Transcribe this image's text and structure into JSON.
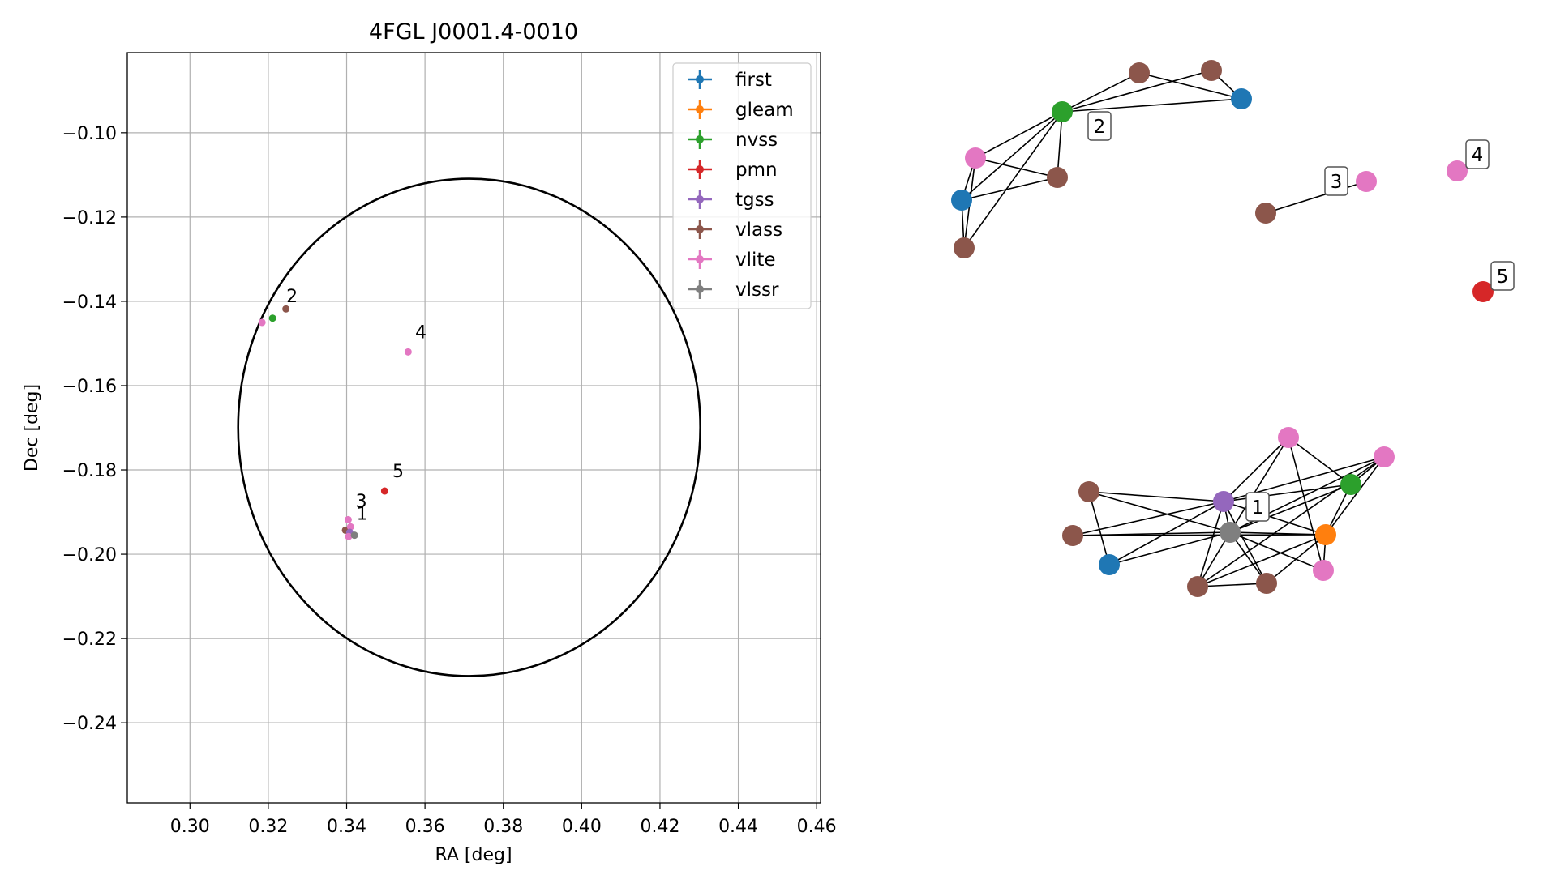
{
  "colors": {
    "first": "#1f77b4",
    "gleam": "#ff7f0e",
    "nvss": "#2ca02c",
    "pmn": "#d62728",
    "tgss": "#9467bd",
    "vlass": "#8c564b",
    "vlite": "#e377c2",
    "vlssr": "#7f7f7f"
  },
  "chart_data": [
    {
      "type": "scatter",
      "title": "4FGL J0001.4-0010",
      "xlabel": "RA [deg]",
      "ylabel": "Dec [deg]",
      "xlim": [
        0.284,
        0.461
      ],
      "ylim": [
        -0.259,
        -0.081
      ],
      "xticks": [
        0.3,
        0.32,
        0.34,
        0.36,
        0.38,
        0.4,
        0.42,
        0.44,
        0.46
      ],
      "xtick_labels": [
        "0.30",
        "0.32",
        "0.34",
        "0.36",
        "0.38",
        "0.40",
        "0.42",
        "0.44",
        "0.46"
      ],
      "yticks": [
        -0.1,
        -0.12,
        -0.14,
        -0.16,
        -0.18,
        -0.2,
        -0.22,
        -0.24
      ],
      "ytick_labels": [
        "−0.10",
        "−0.12",
        "−0.14",
        "−0.16",
        "−0.18",
        "−0.20",
        "−0.22",
        "−0.24"
      ],
      "grid": true,
      "legend_position": "top-right",
      "legend": [
        "first",
        "gleam",
        "nvss",
        "pmn",
        "tgss",
        "vlass",
        "vlite",
        "vlssr"
      ],
      "circle": {
        "center_ra": 0.3713,
        "center_dec": -0.1699,
        "radius": 0.059
      },
      "points": [
        {
          "survey": "vlite",
          "ra": 0.3184,
          "dec": -0.145
        },
        {
          "survey": "nvss",
          "ra": 0.3211,
          "dec": -0.144
        },
        {
          "survey": "vlass",
          "ra": 0.3245,
          "dec": -0.1418
        },
        {
          "survey": "vlite",
          "ra": 0.3557,
          "dec": -0.152
        },
        {
          "survey": "pmn",
          "ra": 0.3497,
          "dec": -0.185
        },
        {
          "survey": "vlite",
          "ra": 0.3404,
          "dec": -0.1918
        },
        {
          "survey": "vlass",
          "ra": 0.3397,
          "dec": -0.1943
        },
        {
          "survey": "vlite",
          "ra": 0.341,
          "dec": -0.1935
        },
        {
          "survey": "tgss",
          "ra": 0.3408,
          "dec": -0.1948
        },
        {
          "survey": "vlite",
          "ra": 0.3405,
          "dec": -0.1958
        },
        {
          "survey": "vlssr",
          "ra": 0.342,
          "dec": -0.1955
        }
      ],
      "annotations": [
        {
          "text": "2",
          "ra": 0.3246,
          "dec": -0.1402
        },
        {
          "text": "4",
          "ra": 0.3575,
          "dec": -0.1488
        },
        {
          "text": "5",
          "ra": 0.3517,
          "dec": -0.1817
        },
        {
          "text": "3",
          "ra": 0.3423,
          "dec": -0.1888
        },
        {
          "text": "1",
          "ra": 0.3425,
          "dec": -0.1918
        }
      ]
    },
    {
      "type": "network",
      "nodes": [
        {
          "id": "a1",
          "survey": "vlass",
          "gx": 1405,
          "gy": 90
        },
        {
          "id": "a2",
          "survey": "vlass",
          "gx": 1494,
          "gy": 87
        },
        {
          "id": "a3",
          "survey": "first",
          "gx": 1531,
          "gy": 122
        },
        {
          "id": "a4",
          "survey": "nvss",
          "gx": 1310,
          "gy": 138
        },
        {
          "id": "a5",
          "survey": "vlite",
          "gx": 1203,
          "gy": 195
        },
        {
          "id": "a6",
          "survey": "vlass",
          "gx": 1304,
          "gy": 219
        },
        {
          "id": "a7",
          "survey": "first",
          "gx": 1186,
          "gy": 247
        },
        {
          "id": "a8",
          "survey": "vlass",
          "gx": 1189,
          "gy": 306
        },
        {
          "id": "c1",
          "survey": "vlass",
          "gx": 1561,
          "gy": 263
        },
        {
          "id": "c2",
          "survey": "vlite",
          "gx": 1685,
          "gy": 224
        },
        {
          "id": "d1",
          "survey": "vlite",
          "gx": 1797,
          "gy": 211
        },
        {
          "id": "e1",
          "survey": "pmn",
          "gx": 1829,
          "gy": 360
        },
        {
          "id": "b1",
          "survey": "vlite",
          "gx": 1589,
          "gy": 540
        },
        {
          "id": "b2",
          "survey": "vlite",
          "gx": 1707,
          "gy": 564
        },
        {
          "id": "b3",
          "survey": "nvss",
          "gx": 1666,
          "gy": 598
        },
        {
          "id": "b4",
          "survey": "vlass",
          "gx": 1343,
          "gy": 607
        },
        {
          "id": "b5",
          "survey": "tgss",
          "gx": 1509,
          "gy": 619
        },
        {
          "id": "b6",
          "survey": "vlssr",
          "gx": 1517,
          "gy": 657
        },
        {
          "id": "b7",
          "survey": "gleam",
          "gx": 1635,
          "gy": 660
        },
        {
          "id": "b8",
          "survey": "vlass",
          "gx": 1323,
          "gy": 661
        },
        {
          "id": "b9",
          "survey": "first",
          "gx": 1368,
          "gy": 697
        },
        {
          "id": "b10",
          "survey": "vlite",
          "gx": 1632,
          "gy": 704
        },
        {
          "id": "b11",
          "survey": "vlass",
          "gx": 1562,
          "gy": 720
        },
        {
          "id": "b12",
          "survey": "vlass",
          "gx": 1477,
          "gy": 724
        }
      ],
      "edges": [
        [
          "a4",
          "a1"
        ],
        [
          "a4",
          "a2"
        ],
        [
          "a4",
          "a3"
        ],
        [
          "a1",
          "a3"
        ],
        [
          "a2",
          "a3"
        ],
        [
          "a4",
          "a5"
        ],
        [
          "a4",
          "a6"
        ],
        [
          "a4",
          "a7"
        ],
        [
          "a4",
          "a8"
        ],
        [
          "a5",
          "a7"
        ],
        [
          "a5",
          "a8"
        ],
        [
          "a5",
          "a6"
        ],
        [
          "a7",
          "a6"
        ],
        [
          "a7",
          "a8"
        ],
        [
          "c1",
          "c2"
        ],
        [
          "b5",
          "b4"
        ],
        [
          "b5",
          "b8"
        ],
        [
          "b5",
          "b9"
        ],
        [
          "b5",
          "b1"
        ],
        [
          "b5",
          "b2"
        ],
        [
          "b5",
          "b3"
        ],
        [
          "b5",
          "b7"
        ],
        [
          "b5",
          "b11"
        ],
        [
          "b5",
          "b12"
        ],
        [
          "b5",
          "b6"
        ],
        [
          "b6",
          "b4"
        ],
        [
          "b6",
          "b8"
        ],
        [
          "b6",
          "b9"
        ],
        [
          "b6",
          "b1"
        ],
        [
          "b6",
          "b2"
        ],
        [
          "b6",
          "b3"
        ],
        [
          "b6",
          "b7"
        ],
        [
          "b6",
          "b10"
        ],
        [
          "b6",
          "b11"
        ],
        [
          "b6",
          "b12"
        ],
        [
          "b4",
          "b9"
        ],
        [
          "b1",
          "b3"
        ],
        [
          "b1",
          "b10"
        ],
        [
          "b2",
          "b3"
        ],
        [
          "b2",
          "b7"
        ],
        [
          "b3",
          "b7"
        ],
        [
          "b7",
          "b12"
        ],
        [
          "b7",
          "b11"
        ],
        [
          "b7",
          "b10"
        ],
        [
          "b8",
          "b7"
        ],
        [
          "b12",
          "b11"
        ],
        [
          "b2",
          "b12"
        ]
      ],
      "labels": [
        {
          "text": "2",
          "gx": 1356,
          "gy": 156
        },
        {
          "text": "3",
          "gx": 1648,
          "gy": 224
        },
        {
          "text": "4",
          "gx": 1822,
          "gy": 191
        },
        {
          "text": "5",
          "gx": 1853,
          "gy": 341
        },
        {
          "text": "1",
          "gx": 1551,
          "gy": 626
        }
      ]
    }
  ]
}
